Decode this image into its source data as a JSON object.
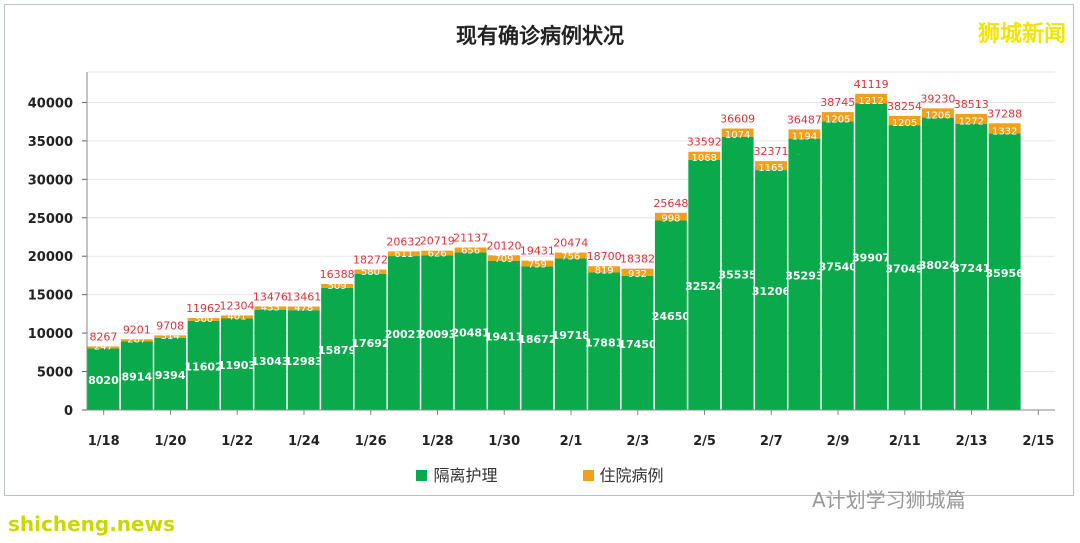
{
  "chart_data": {
    "type": "bar",
    "stacked": true,
    "title": "现有确诊病例状况",
    "categories": [
      "1/18",
      "1/19",
      "1/20",
      "1/21",
      "1/22",
      "1/23",
      "1/24",
      "1/25",
      "1/26",
      "1/27",
      "1/28",
      "1/29",
      "1/30",
      "1/31",
      "2/1",
      "2/2",
      "2/3",
      "2/4",
      "2/5",
      "2/6",
      "2/7",
      "2/8",
      "2/9",
      "2/10",
      "2/11",
      "2/12",
      "2/13",
      "2/14"
    ],
    "x_tick_labels": [
      "1/18",
      "1/20",
      "1/22",
      "1/24",
      "1/26",
      "1/28",
      "1/30",
      "2/1",
      "2/3",
      "2/5",
      "2/7",
      "2/9",
      "2/11",
      "2/13",
      "2/15"
    ],
    "series": [
      {
        "name": "隔离护理",
        "color": "#0aaa4c",
        "values": [
          8020,
          8914,
          9394,
          11602,
          11903,
          13043,
          12983,
          15879,
          17692,
          20021,
          20093,
          20481,
          19411,
          18672,
          19718,
          17881,
          17450,
          24650,
          32524,
          35535,
          31206,
          35293,
          37540,
          39907,
          37049,
          38024,
          37241,
          35956
        ]
      },
      {
        "name": "住院病例",
        "color": "#f0a01a",
        "values": [
          247,
          287,
          314,
          360,
          401,
          433,
          478,
          509,
          580,
          611,
          626,
          656,
          709,
          759,
          756,
          819,
          932,
          998,
          1068,
          1074,
          1165,
          1194,
          1205,
          1212,
          1205,
          1206,
          1272,
          1332
        ]
      }
    ],
    "totals": [
      8267,
      9201,
      9708,
      11962,
      12304,
      13476,
      13461,
      16388,
      18272,
      20632,
      20719,
      21137,
      20120,
      19431,
      20474,
      18700,
      18382,
      25648,
      33592,
      36609,
      32371,
      36487,
      38745,
      41119,
      38254,
      39230,
      38513,
      37288
    ],
    "y_ticks": [
      0,
      5000,
      10000,
      15000,
      20000,
      25000,
      30000,
      35000,
      40000
    ],
    "ylim": [
      0,
      45000
    ],
    "grid": true,
    "legend": "bottom"
  },
  "brand": "狮城新闻",
  "watermark_wechat": "A计划学习狮城篇",
  "watermark_site": "shicheng.news"
}
